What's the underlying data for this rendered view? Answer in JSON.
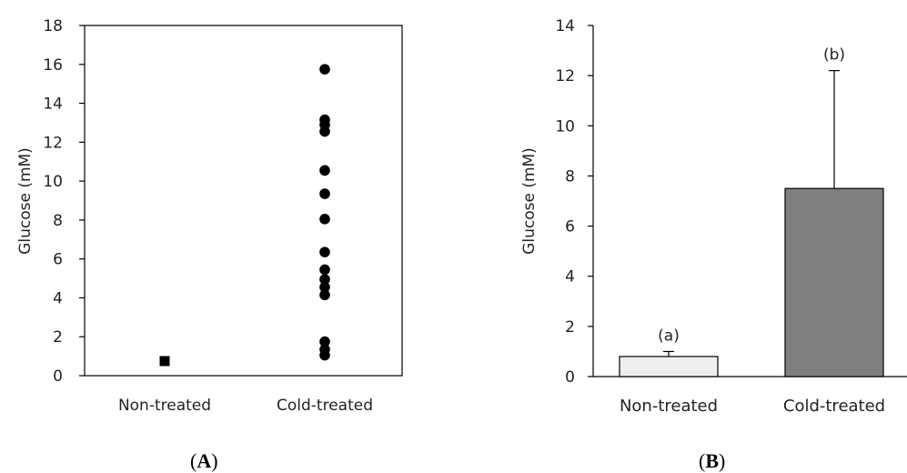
{
  "chart_data": [
    {
      "type": "scatter",
      "panel": "A",
      "ylabel": "Glucose (mM)",
      "ylim": [
        0,
        18
      ],
      "yticks": [
        0,
        2,
        4,
        6,
        8,
        10,
        12,
        14,
        16,
        18
      ],
      "categories": [
        "Non-treated",
        "Cold-treated"
      ],
      "series": [
        {
          "category": "Non-treated",
          "marker": "square",
          "values": [
            0.75
          ]
        },
        {
          "category": "Cold-treated",
          "marker": "circle",
          "values": [
            15.75,
            13.15,
            12.9,
            12.55,
            10.55,
            9.35,
            8.05,
            6.35,
            5.45,
            4.95,
            4.55,
            4.15,
            1.75,
            1.35,
            1.05
          ]
        }
      ],
      "grid": false,
      "marker_color": "#000000"
    },
    {
      "type": "bar",
      "panel": "B",
      "ylabel": "Glucose (mM)",
      "ylim": [
        0,
        14
      ],
      "yticks": [
        0,
        2,
        4,
        6,
        8,
        10,
        12,
        14
      ],
      "categories": [
        "Non-treated",
        "Cold-treated"
      ],
      "values": [
        0.8,
        7.5
      ],
      "error_upper": [
        0.2,
        4.7
      ],
      "annotations": [
        "(a)",
        "(b)"
      ],
      "colors": [
        "#efefef",
        "#7f7f7f"
      ],
      "grid": false
    }
  ],
  "panel_labels": [
    "A",
    "B"
  ]
}
